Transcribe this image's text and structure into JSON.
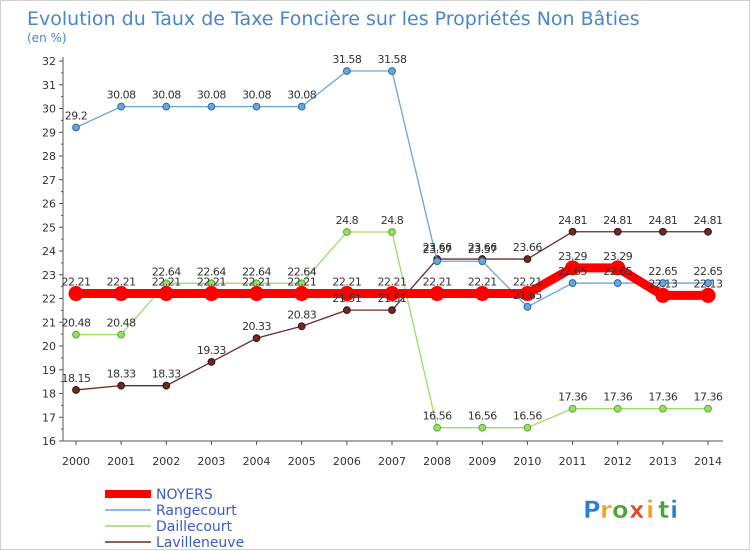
{
  "chart_data": {
    "type": "line",
    "title": "Evolution du Taux de Taxe Foncière sur les Propriétés Non Bâties",
    "subtitle": "(en %)",
    "xlabel": "",
    "ylabel": "",
    "x": [
      "2000",
      "2001",
      "2002",
      "2003",
      "2004",
      "2005",
      "2006",
      "2007",
      "2008",
      "2009",
      "2010",
      "2011",
      "2012",
      "2013",
      "2014"
    ],
    "ylim": [
      16,
      32
    ],
    "yticks": [
      "16",
      "17",
      "18",
      "19",
      "20",
      "21",
      "22",
      "23",
      "24",
      "25",
      "26",
      "27",
      "28",
      "29",
      "30",
      "31",
      "32"
    ],
    "grid": false,
    "legend_position": "bottom-left",
    "series": [
      {
        "name": "NOYERS",
        "color": "#ff0000",
        "values": [
          22.21,
          22.21,
          22.21,
          22.21,
          22.21,
          22.21,
          22.21,
          22.21,
          22.21,
          22.21,
          22.21,
          23.29,
          23.29,
          22.13,
          22.13
        ],
        "labels": [
          "22.21",
          "22.21",
          "22.21",
          "22.21",
          "22.21",
          "22.21",
          "22.21",
          "22.21",
          "22.21",
          "22.21",
          "22.21",
          "23.29",
          "23.29",
          "22.13",
          "22.13"
        ]
      },
      {
        "name": "Rangecourt",
        "color": "#6aa6d8",
        "values": [
          29.2,
          30.08,
          30.08,
          30.08,
          30.08,
          30.08,
          31.58,
          31.58,
          23.57,
          23.57,
          21.65,
          22.65,
          22.65,
          22.65,
          22.65
        ],
        "labels": [
          "29.2",
          "30.08",
          "30.08",
          "30.08",
          "30.08",
          "30.08",
          "31.58",
          "31.58",
          "23.57",
          "23.57",
          "21.65",
          "22.65",
          "22.65",
          "22.65",
          "22.65"
        ]
      },
      {
        "name": "Daillecourt",
        "color": "#99dd66",
        "values": [
          20.48,
          20.48,
          22.64,
          22.64,
          22.64,
          22.64,
          24.8,
          24.8,
          16.56,
          16.56,
          16.56,
          17.36,
          17.36,
          17.36,
          17.36
        ],
        "labels": [
          "20.48",
          "20.48",
          "22.64",
          "22.64",
          "22.64",
          "22.64",
          "24.8",
          "24.8",
          "16.56",
          "16.56",
          "16.56",
          "17.36",
          "17.36",
          "17.36",
          "17.36"
        ]
      },
      {
        "name": "Lavilleneuve",
        "color": "#6b2a2a",
        "values": [
          18.15,
          18.33,
          18.33,
          19.33,
          20.33,
          20.83,
          21.51,
          21.51,
          23.66,
          23.66,
          23.66,
          24.81,
          24.81,
          24.81,
          24.81
        ],
        "labels": [
          "18.15",
          "18.33",
          "18.33",
          "19.33",
          "20.33",
          "20.83",
          "21.51",
          "21.51",
          "23.66",
          "23.66",
          "23.66",
          "24.81",
          "24.81",
          "24.81",
          "24.81"
        ]
      }
    ]
  },
  "brand": {
    "letters": [
      "P",
      "r",
      "o",
      "x",
      "i",
      "t",
      "i"
    ],
    "colors": [
      "#2b7fd0",
      "#f2a21b",
      "#4aa43a",
      "#e8432b",
      "#f2a21b",
      "#4aa43a",
      "#2b7fd0"
    ]
  },
  "colors": {
    "title": "#4a86c8",
    "legend_text": "#3a5cc8",
    "axis": "#555555",
    "tick_text": "#333333"
  }
}
